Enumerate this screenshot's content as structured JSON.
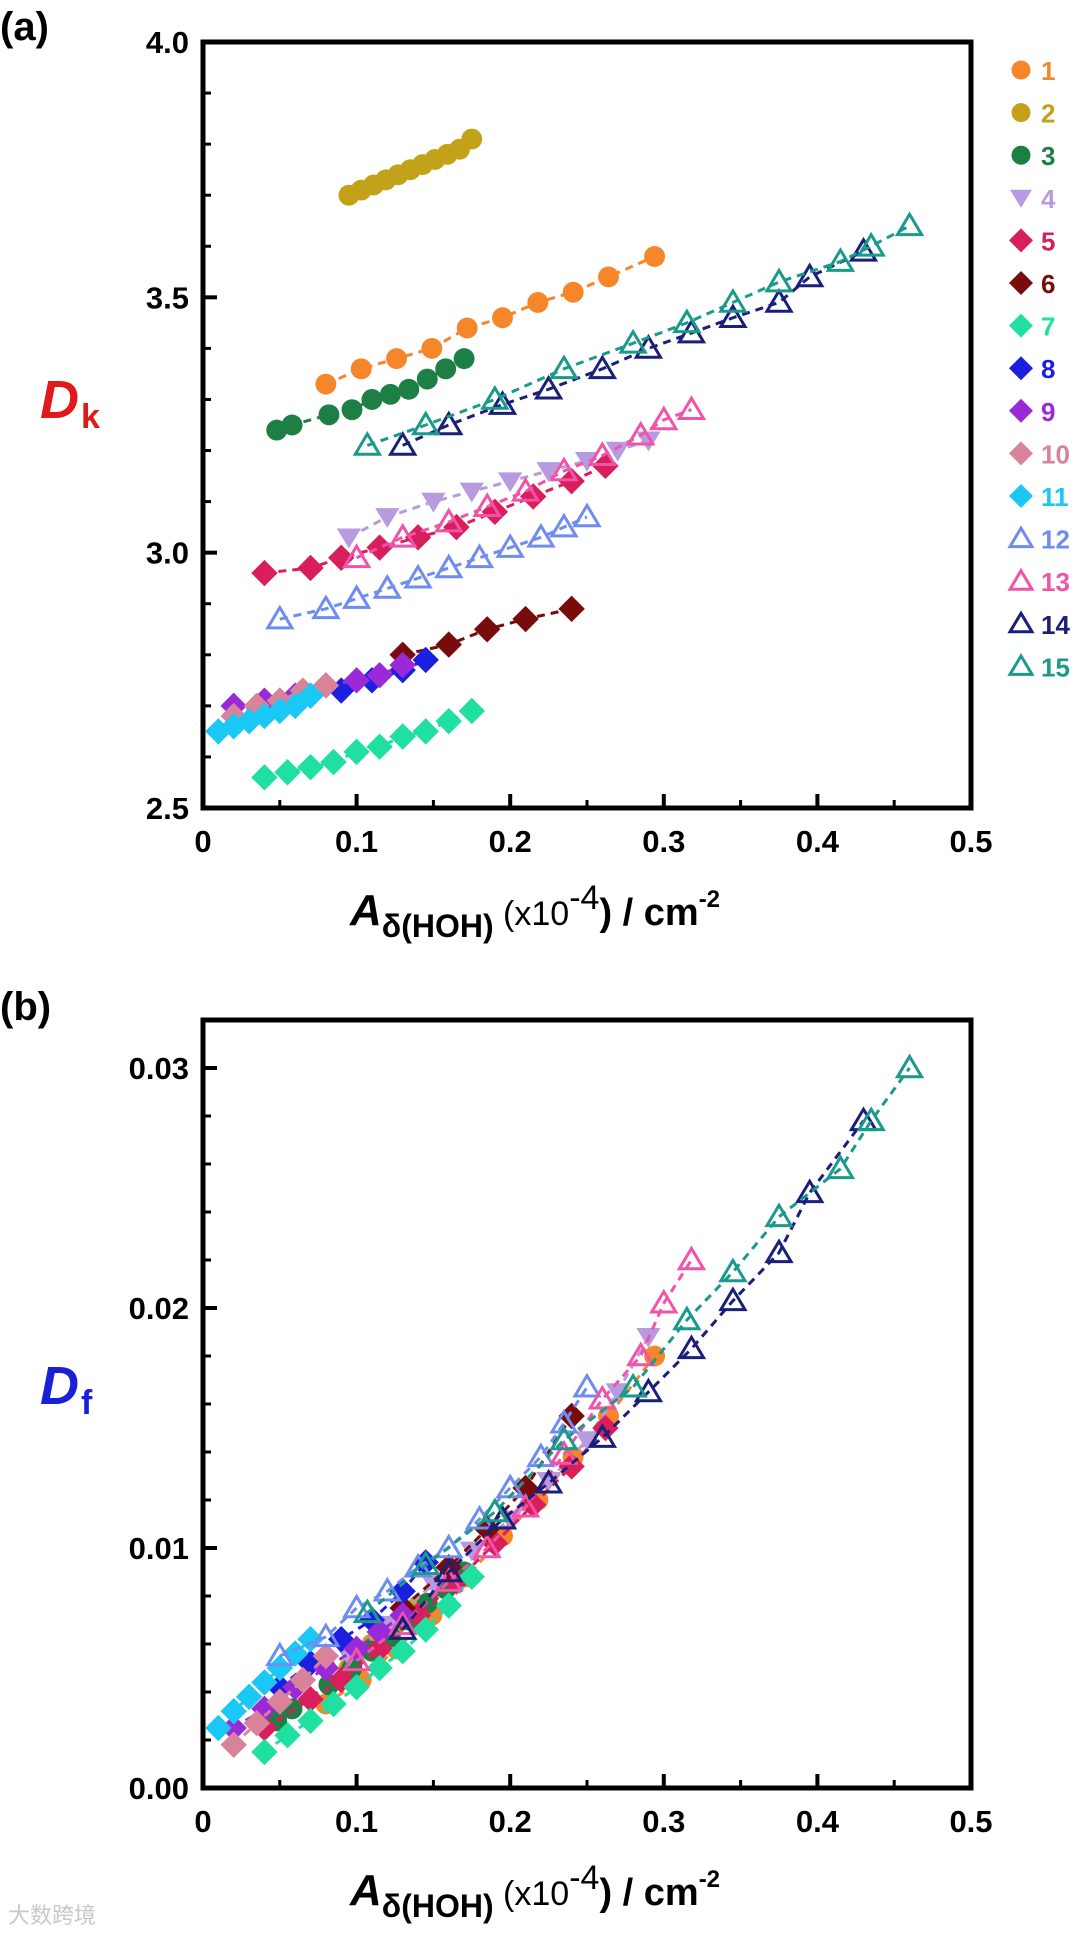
{
  "watermark": "大数跨境",
  "legend": {
    "1": {
      "label": "1",
      "color": "#f5862a",
      "marker": "circle"
    },
    "2": {
      "label": "2",
      "color": "#c3a21a",
      "marker": "circle"
    },
    "3": {
      "label": "3",
      "color": "#1e7f45",
      "marker": "circle"
    },
    "4": {
      "label": "4",
      "color": "#b89ae0",
      "marker": "tri-down"
    },
    "5": {
      "label": "5",
      "color": "#d81e5b",
      "marker": "diamond"
    },
    "6": {
      "label": "6",
      "color": "#7a0b0b",
      "marker": "diamond"
    },
    "7": {
      "label": "7",
      "color": "#1fe0a0",
      "marker": "diamond"
    },
    "8": {
      "label": "8",
      "color": "#1a1fe0",
      "marker": "diamond"
    },
    "9": {
      "label": "9",
      "color": "#9a2ad8",
      "marker": "diamond"
    },
    "10": {
      "label": "10",
      "color": "#d9839a",
      "marker": "diamond"
    },
    "11": {
      "label": "11",
      "color": "#1ac8f5",
      "marker": "diamond"
    },
    "12": {
      "label": "12",
      "color": "#6f8cf0",
      "marker": "tri-open"
    },
    "13": {
      "label": "13",
      "color": "#f054a8",
      "marker": "tri-open"
    },
    "14": {
      "label": "14",
      "color": "#1a1f7a",
      "marker": "tri-open"
    },
    "15": {
      "label": "15",
      "color": "#1a9a8a",
      "marker": "tri-open"
    }
  },
  "chart_data": [
    {
      "panel": "(a)",
      "type": "scatter",
      "ylabel_main": "D",
      "ylabel_sub": "k",
      "ylabel_color": "#e01a1a",
      "xlabel_main": "A",
      "xlabel_sub": "δ(HOH)",
      "xlabel_unit": " (x10",
      "xlabel_exp": "-4",
      "xlabel_tail": ") / cm",
      "xlabel_exp2": "-2",
      "xlim": [
        0,
        0.5
      ],
      "ylim": [
        2.5,
        4.0
      ],
      "xticks": [
        "0",
        "0.1",
        "0.2",
        "0.3",
        "0.4",
        "0.5"
      ],
      "xtick_values": [
        0,
        0.1,
        0.2,
        0.3,
        0.4,
        0.5
      ],
      "yticks": [
        "2.5",
        "3.0",
        "3.5",
        "4.0"
      ],
      "ytick_values": [
        2.5,
        3.0,
        3.5,
        4.0
      ],
      "series": [
        {
          "name": "1",
          "x": [
            0.08,
            0.103,
            0.126,
            0.149,
            0.172,
            0.195,
            0.218,
            0.241,
            0.264,
            0.294
          ],
          "y": [
            3.33,
            3.36,
            3.38,
            3.4,
            3.44,
            3.46,
            3.49,
            3.51,
            3.54,
            3.58
          ]
        },
        {
          "name": "2",
          "x": [
            0.095,
            0.103,
            0.111,
            0.119,
            0.127,
            0.135,
            0.143,
            0.151,
            0.159,
            0.167,
            0.175
          ],
          "y": [
            3.7,
            3.71,
            3.72,
            3.73,
            3.74,
            3.75,
            3.76,
            3.77,
            3.78,
            3.79,
            3.81
          ]
        },
        {
          "name": "3",
          "x": [
            0.048,
            0.058,
            0.082,
            0.097,
            0.11,
            0.122,
            0.134,
            0.146,
            0.158,
            0.17
          ],
          "y": [
            3.24,
            3.25,
            3.27,
            3.28,
            3.3,
            3.31,
            3.32,
            3.34,
            3.36,
            3.38
          ]
        },
        {
          "name": "4",
          "x": [
            0.095,
            0.12,
            0.15,
            0.175,
            0.2,
            0.225,
            0.25,
            0.27,
            0.29
          ],
          "y": [
            3.03,
            3.07,
            3.1,
            3.12,
            3.14,
            3.16,
            3.18,
            3.2,
            3.22
          ]
        },
        {
          "name": "5",
          "x": [
            0.04,
            0.07,
            0.09,
            0.115,
            0.14,
            0.165,
            0.19,
            0.215,
            0.24,
            0.262
          ],
          "y": [
            2.96,
            2.97,
            2.99,
            3.01,
            3.03,
            3.05,
            3.08,
            3.11,
            3.14,
            3.17
          ]
        },
        {
          "name": "6",
          "x": [
            0.13,
            0.16,
            0.185,
            0.21,
            0.24
          ],
          "y": [
            2.8,
            2.82,
            2.85,
            2.87,
            2.89
          ]
        },
        {
          "name": "7",
          "x": [
            0.04,
            0.055,
            0.07,
            0.085,
            0.1,
            0.115,
            0.13,
            0.145,
            0.16,
            0.175
          ],
          "y": [
            2.56,
            2.57,
            2.58,
            2.59,
            2.61,
            2.62,
            2.64,
            2.65,
            2.67,
            2.69
          ]
        },
        {
          "name": "8",
          "x": [
            0.05,
            0.07,
            0.09,
            0.11,
            0.13,
            0.145
          ],
          "y": [
            2.71,
            2.72,
            2.73,
            2.75,
            2.77,
            2.79
          ]
        },
        {
          "name": "9",
          "x": [
            0.02,
            0.04,
            0.06,
            0.08,
            0.1,
            0.115,
            0.13
          ],
          "y": [
            2.7,
            2.71,
            2.72,
            2.74,
            2.75,
            2.76,
            2.78
          ]
        },
        {
          "name": "10",
          "x": [
            0.02,
            0.035,
            0.05,
            0.065,
            0.08
          ],
          "y": [
            2.68,
            2.7,
            2.71,
            2.73,
            2.74
          ]
        },
        {
          "name": "11",
          "x": [
            0.01,
            0.02,
            0.03,
            0.04,
            0.05,
            0.06,
            0.07
          ],
          "y": [
            2.65,
            2.66,
            2.67,
            2.68,
            2.69,
            2.7,
            2.72
          ]
        },
        {
          "name": "12",
          "x": [
            0.05,
            0.08,
            0.1,
            0.12,
            0.14,
            0.16,
            0.18,
            0.2,
            0.22,
            0.235,
            0.25
          ],
          "y": [
            2.87,
            2.89,
            2.91,
            2.93,
            2.95,
            2.97,
            2.99,
            3.01,
            3.03,
            3.05,
            3.07
          ]
        },
        {
          "name": "13",
          "x": [
            0.1,
            0.13,
            0.16,
            0.185,
            0.21,
            0.235,
            0.26,
            0.285,
            0.3,
            0.318
          ],
          "y": [
            2.99,
            3.03,
            3.06,
            3.09,
            3.12,
            3.16,
            3.19,
            3.23,
            3.26,
            3.28
          ]
        },
        {
          "name": "14",
          "x": [
            0.13,
            0.16,
            0.195,
            0.225,
            0.26,
            0.29,
            0.318,
            0.345,
            0.375,
            0.395,
            0.43
          ],
          "y": [
            3.21,
            3.25,
            3.29,
            3.32,
            3.36,
            3.4,
            3.43,
            3.46,
            3.49,
            3.54,
            3.59
          ]
        },
        {
          "name": "15",
          "x": [
            0.107,
            0.145,
            0.19,
            0.235,
            0.28,
            0.315,
            0.345,
            0.375,
            0.415,
            0.435,
            0.46
          ],
          "y": [
            3.21,
            3.25,
            3.3,
            3.36,
            3.41,
            3.45,
            3.49,
            3.53,
            3.57,
            3.6,
            3.64
          ]
        }
      ]
    },
    {
      "panel": "(b)",
      "type": "scatter",
      "ylabel_main": "D",
      "ylabel_sub": "f",
      "ylabel_color": "#1a1fd8",
      "xlabel_main": "A",
      "xlabel_sub": "δ(HOH)",
      "xlabel_unit": " (x10",
      "xlabel_exp": "-4",
      "xlabel_tail": ") / cm",
      "xlabel_exp2": "-2",
      "xlim": [
        0,
        0.5
      ],
      "ylim": [
        0.0,
        0.032
      ],
      "xticks": [
        "0",
        "0.1",
        "0.2",
        "0.3",
        "0.4",
        "0.5"
      ],
      "xtick_values": [
        0,
        0.1,
        0.2,
        0.3,
        0.4,
        0.5
      ],
      "yticks": [
        "0.00",
        "0.01",
        "0.02",
        "0.03"
      ],
      "ytick_values": [
        0.0,
        0.01,
        0.02,
        0.03
      ],
      "series": [
        {
          "name": "1",
          "x": [
            0.08,
            0.103,
            0.126,
            0.149,
            0.172,
            0.195,
            0.218,
            0.241,
            0.264,
            0.294
          ],
          "y": [
            0.0035,
            0.0045,
            0.0058,
            0.0072,
            0.0088,
            0.0105,
            0.012,
            0.0138,
            0.0155,
            0.018
          ]
        },
        {
          "name": "2",
          "x": [
            0.095,
            0.11,
            0.125,
            0.14,
            0.155,
            0.17
          ],
          "y": [
            0.005,
            0.006,
            0.0068,
            0.0076,
            0.0084,
            0.009
          ]
        },
        {
          "name": "3",
          "x": [
            0.048,
            0.058,
            0.082,
            0.097,
            0.11,
            0.122,
            0.134,
            0.146,
            0.158,
            0.17
          ],
          "y": [
            0.0028,
            0.0033,
            0.0043,
            0.005,
            0.0057,
            0.0063,
            0.007,
            0.0077,
            0.0083,
            0.009
          ]
        },
        {
          "name": "4",
          "x": [
            0.095,
            0.12,
            0.15,
            0.175,
            0.2,
            0.225,
            0.25,
            0.27,
            0.29
          ],
          "y": [
            0.0055,
            0.0068,
            0.0085,
            0.0099,
            0.0112,
            0.0128,
            0.0145,
            0.0165,
            0.0188
          ]
        },
        {
          "name": "5",
          "x": [
            0.04,
            0.07,
            0.09,
            0.115,
            0.14,
            0.165,
            0.19,
            0.215,
            0.24,
            0.262
          ],
          "y": [
            0.0025,
            0.0037,
            0.0045,
            0.0058,
            0.0072,
            0.0086,
            0.0102,
            0.0118,
            0.0134,
            0.015
          ]
        },
        {
          "name": "6",
          "x": [
            0.13,
            0.16,
            0.185,
            0.21,
            0.24
          ],
          "y": [
            0.0075,
            0.0092,
            0.0108,
            0.0125,
            0.0155
          ]
        },
        {
          "name": "7",
          "x": [
            0.04,
            0.055,
            0.07,
            0.085,
            0.1,
            0.115,
            0.13,
            0.145,
            0.16,
            0.175
          ],
          "y": [
            0.0015,
            0.0022,
            0.0028,
            0.0035,
            0.0042,
            0.005,
            0.0057,
            0.0066,
            0.0076,
            0.0088
          ]
        },
        {
          "name": "8",
          "x": [
            0.05,
            0.07,
            0.09,
            0.11,
            0.13,
            0.145
          ],
          "y": [
            0.0042,
            0.0052,
            0.0062,
            0.007,
            0.0082,
            0.0094
          ]
        },
        {
          "name": "9",
          "x": [
            0.02,
            0.04,
            0.06,
            0.08,
            0.1,
            0.115,
            0.13
          ],
          "y": [
            0.0025,
            0.0033,
            0.0042,
            0.005,
            0.0058,
            0.0065,
            0.0072
          ]
        },
        {
          "name": "10",
          "x": [
            0.02,
            0.035,
            0.05,
            0.065,
            0.08
          ],
          "y": [
            0.0018,
            0.0027,
            0.0036,
            0.0045,
            0.0055
          ]
        },
        {
          "name": "11",
          "x": [
            0.01,
            0.02,
            0.03,
            0.04,
            0.05,
            0.06,
            0.07
          ],
          "y": [
            0.0025,
            0.0032,
            0.0038,
            0.0044,
            0.005,
            0.0056,
            0.0062
          ]
        },
        {
          "name": "12",
          "x": [
            0.05,
            0.08,
            0.1,
            0.12,
            0.14,
            0.16,
            0.18,
            0.2,
            0.22,
            0.235,
            0.25
          ],
          "y": [
            0.0055,
            0.0063,
            0.0075,
            0.0082,
            0.0092,
            0.01,
            0.0112,
            0.0125,
            0.0138,
            0.0152,
            0.0167
          ]
        },
        {
          "name": "13",
          "x": [
            0.1,
            0.13,
            0.16,
            0.185,
            0.21,
            0.235,
            0.26,
            0.285,
            0.3,
            0.318
          ],
          "y": [
            0.0053,
            0.0068,
            0.0086,
            0.01,
            0.0117,
            0.0139,
            0.0162,
            0.018,
            0.0202,
            0.022
          ]
        },
        {
          "name": "14",
          "x": [
            0.13,
            0.16,
            0.195,
            0.225,
            0.26,
            0.29,
            0.318,
            0.345,
            0.375,
            0.395,
            0.43
          ],
          "y": [
            0.0066,
            0.009,
            0.0112,
            0.0127,
            0.0146,
            0.0165,
            0.0183,
            0.0203,
            0.0223,
            0.0248,
            0.0278
          ]
        },
        {
          "name": "15",
          "x": [
            0.107,
            0.145,
            0.19,
            0.235,
            0.28,
            0.315,
            0.345,
            0.375,
            0.415,
            0.435,
            0.46
          ],
          "y": [
            0.0073,
            0.0093,
            0.0115,
            0.0145,
            0.0167,
            0.0195,
            0.0215,
            0.0238,
            0.0258,
            0.0278,
            0.03
          ]
        }
      ]
    }
  ]
}
